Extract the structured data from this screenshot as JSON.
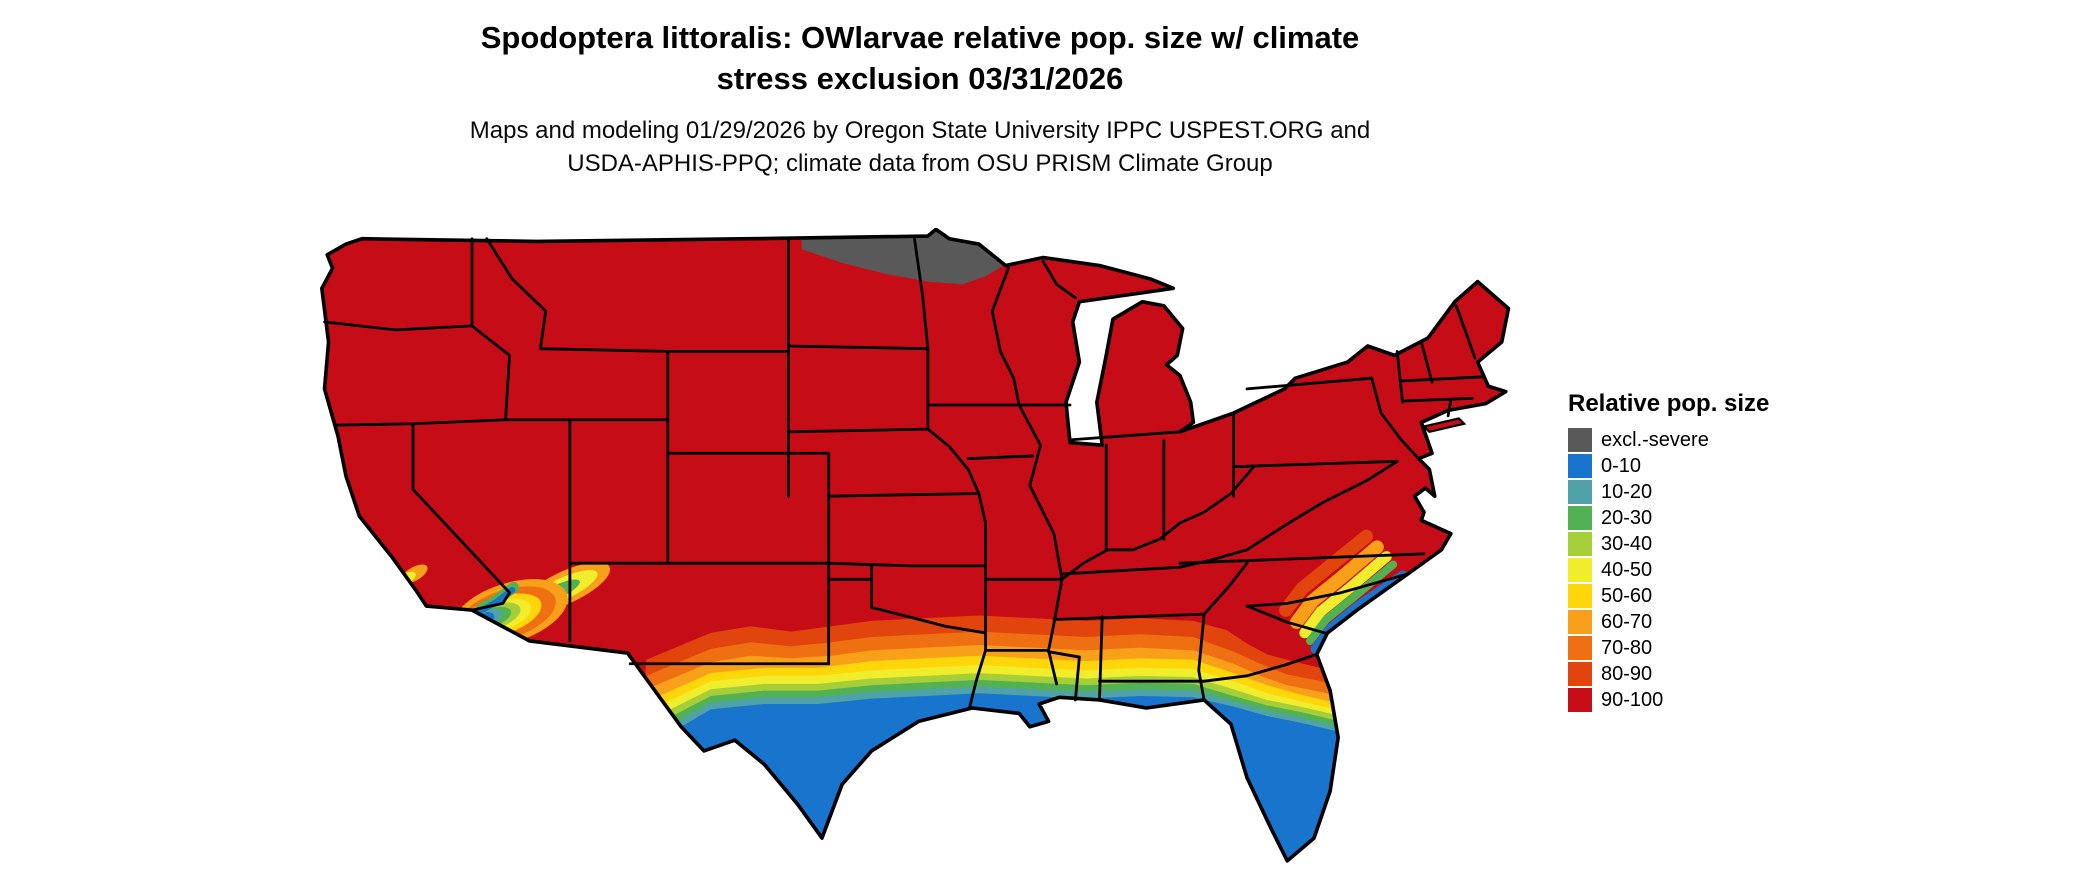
{
  "header": {
    "title_line1": "Spodoptera littoralis: OWlarvae relative pop. size w/ climate",
    "title_line2": "stress exclusion 03/31/2026",
    "subtitle_line1": "Maps and modeling 01/29/2026 by Oregon State University IPPC USPEST.ORG and",
    "subtitle_line2": "USDA-APHIS-PPQ; climate data from OSU PRISM Climate Group"
  },
  "legend": {
    "title": "Relative pop. size",
    "entries": [
      {
        "key": "excl",
        "label": "excl.-severe",
        "color": "#595959"
      },
      {
        "key": "v0010",
        "label": "0-10",
        "color": "#1874cd"
      },
      {
        "key": "v1020",
        "label": "10-20",
        "color": "#4fa3a8"
      },
      {
        "key": "v2030",
        "label": "20-30",
        "color": "#52b152"
      },
      {
        "key": "v3040",
        "label": "30-40",
        "color": "#a6ce39"
      },
      {
        "key": "v4050",
        "label": "40-50",
        "color": "#f0ee2c"
      },
      {
        "key": "v5060",
        "label": "50-60",
        "color": "#ffd60a"
      },
      {
        "key": "v6070",
        "label": "60-70",
        "color": "#f9a01b"
      },
      {
        "key": "v7080",
        "label": "70-80",
        "color": "#ef7012"
      },
      {
        "key": "v8090",
        "label": "80-90",
        "color": "#e2440d"
      },
      {
        "key": "v90100",
        "label": "90-100",
        "color": "#c60d17"
      }
    ]
  }
}
